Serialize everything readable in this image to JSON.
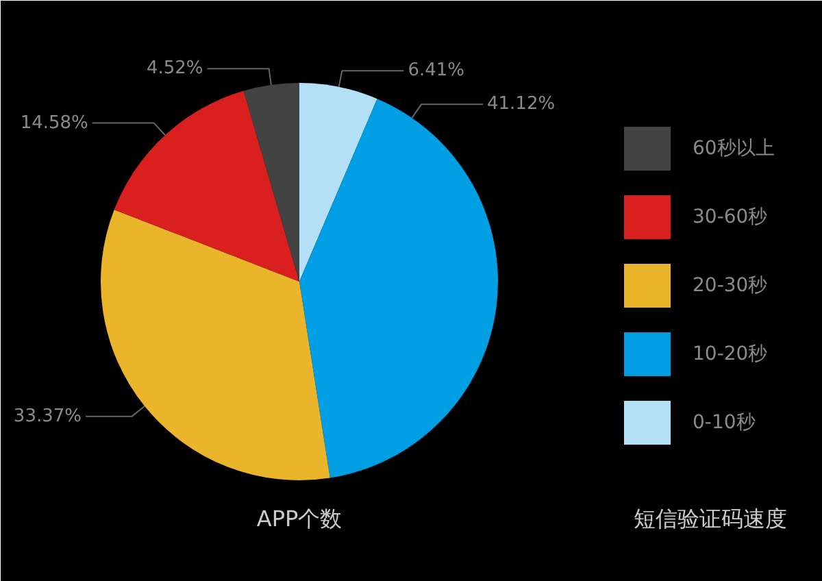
{
  "chart_data": {
    "type": "pie",
    "xlabel": "APP个数",
    "legend_title": "短信验证码速度",
    "categories": [
      "0-10秒",
      "10-20秒",
      "20-30秒",
      "30-60秒",
      "60秒以上"
    ],
    "values": [
      6.41,
      41.12,
      33.37,
      14.58,
      4.52
    ],
    "colors": [
      "#b3e0f7",
      "#009fe3",
      "#eab42b",
      "#d9201f",
      "#434343"
    ],
    "value_labels": [
      "6.41%",
      "41.12%",
      "33.37%",
      "14.58%",
      "4.52%"
    ],
    "legend": "right"
  }
}
